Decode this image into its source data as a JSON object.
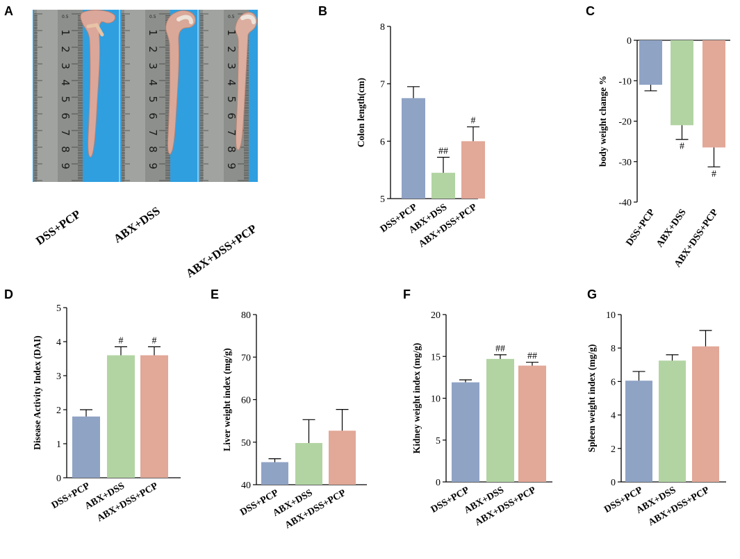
{
  "panels": {
    "A": {
      "letter": "A",
      "groups": [
        "DSS+PCP",
        "ABX+DSS",
        "ABX+DSS+PCP"
      ]
    },
    "B": {
      "letter": "B"
    },
    "C": {
      "letter": "C"
    },
    "D": {
      "letter": "D"
    },
    "E": {
      "letter": "E"
    },
    "F": {
      "letter": "F"
    },
    "G": {
      "letter": "G"
    }
  },
  "colors": {
    "bar1": "#8fa3c5",
    "bar2": "#b2d4a3",
    "bar3": "#e2a898",
    "ruler": "#8c8f8b",
    "background": "#2f9fe0"
  },
  "ruler_numbers": [
    "1",
    "2",
    "3",
    "4",
    "5",
    "6",
    "7",
    "8",
    "9"
  ],
  "ruler_small_label": "0.5",
  "chart_data": [
    {
      "id": "B",
      "type": "bar",
      "categories": [
        "DSS+PCP",
        "ABX+DSS",
        "ABX+DSS+PCP"
      ],
      "values": [
        6.75,
        5.45,
        6.0
      ],
      "errors": [
        0.2,
        0.27,
        0.25
      ],
      "annotations": [
        "",
        "##",
        "#"
      ],
      "annotation_position": "above",
      "ylabel": "Colon length(cm)",
      "ylim": [
        5,
        8
      ],
      "yticks": [
        5,
        6,
        7,
        8
      ]
    },
    {
      "id": "C",
      "type": "bar",
      "categories": [
        "DSS+PCP",
        "ABX+DSS",
        "ABX+DSS+PCP"
      ],
      "values": [
        -11,
        -21,
        -26.5
      ],
      "errors": [
        1.5,
        3.5,
        4.8
      ],
      "annotations": [
        "",
        "#",
        "#"
      ],
      "annotation_position": "below",
      "ylabel": "body weight change %",
      "ylim": [
        -40,
        0
      ],
      "yticks": [
        0,
        -10,
        -20,
        -30,
        -40
      ]
    },
    {
      "id": "D",
      "type": "bar",
      "categories": [
        "DSS+PCP",
        "ABX+DSS",
        "ABX+DSS+PCP"
      ],
      "values": [
        1.8,
        3.6,
        3.6
      ],
      "errors": [
        0.2,
        0.25,
        0.25
      ],
      "annotations": [
        "",
        "#",
        "#"
      ],
      "annotation_position": "above",
      "ylabel": "Disease Activity Index (DAI)",
      "ylim": [
        0,
        5
      ],
      "yticks": [
        0,
        1,
        2,
        3,
        4,
        5
      ]
    },
    {
      "id": "E",
      "type": "bar",
      "categories": [
        "DSS+PCP",
        "ABX+DSS",
        "ABX+DSS+PCP"
      ],
      "values": [
        45.3,
        49.8,
        52.7
      ],
      "errors": [
        0.8,
        5.5,
        5.0
      ],
      "annotations": [
        "",
        "",
        ""
      ],
      "annotation_position": "above",
      "ylabel": "Liver weight index (mg/g)",
      "ylim": [
        40,
        80
      ],
      "yticks": [
        40,
        50,
        60,
        70,
        80
      ]
    },
    {
      "id": "F",
      "type": "bar",
      "categories": [
        "DSS+PCP",
        "ABX+DSS",
        "ABX+DSS+PCP"
      ],
      "values": [
        11.9,
        14.7,
        13.9
      ],
      "errors": [
        0.3,
        0.5,
        0.4
      ],
      "annotations": [
        "",
        "##",
        "##"
      ],
      "annotation_position": "above",
      "ylabel": "Kidney weight index (mg/g)",
      "ylim": [
        0,
        20
      ],
      "yticks": [
        0,
        5,
        10,
        15,
        20
      ]
    },
    {
      "id": "G",
      "type": "bar",
      "categories": [
        "DSS+PCP",
        "ABX+DSS",
        "ABX+DSS+PCP"
      ],
      "values": [
        6.05,
        7.25,
        8.1
      ],
      "errors": [
        0.55,
        0.35,
        0.95
      ],
      "annotations": [
        "",
        "",
        ""
      ],
      "annotation_position": "above",
      "ylabel": "Spleen weight index (mg/g)",
      "ylim": [
        0,
        10
      ],
      "yticks": [
        0,
        2,
        4,
        6,
        8,
        10
      ]
    }
  ]
}
